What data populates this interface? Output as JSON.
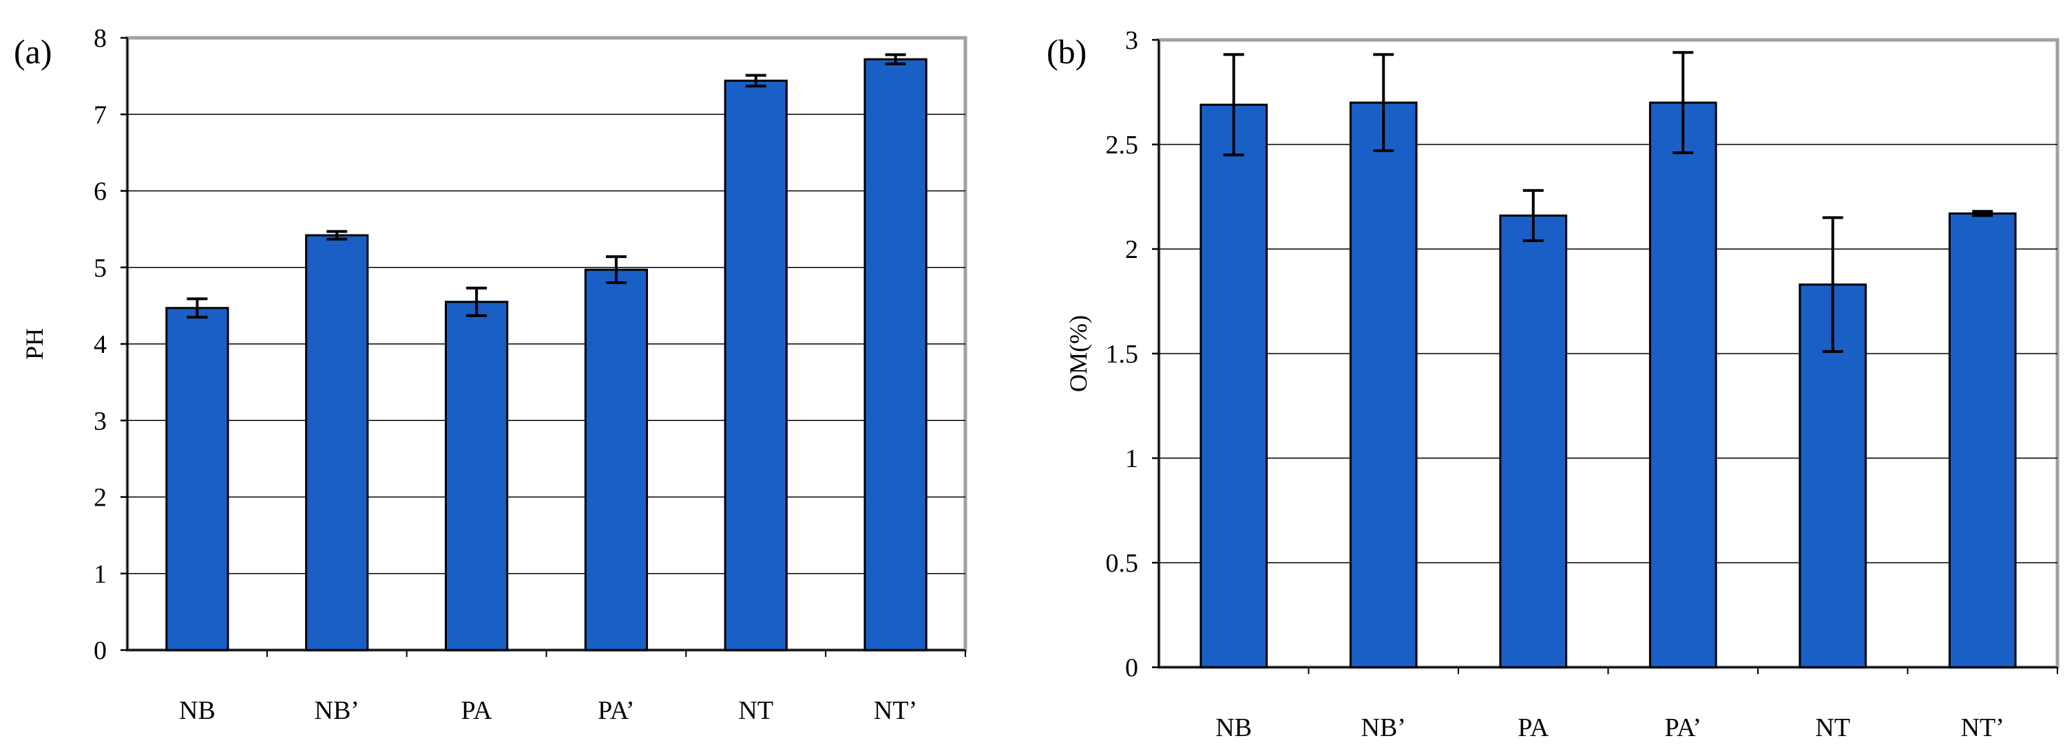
{
  "chart_data": [
    {
      "type": "bar",
      "panel_label": "(a)",
      "title": "",
      "xlabel": "",
      "ylabel": "PH",
      "ylim": [
        0,
        8
      ],
      "yticks": [
        0,
        1,
        2,
        3,
        4,
        5,
        6,
        7,
        8
      ],
      "ytick_labels": [
        "0",
        "1",
        "2",
        "3",
        "4",
        "5",
        "6",
        "7",
        "8"
      ],
      "grid": true,
      "categories": [
        "NB",
        "NB’",
        "PA",
        "PA’",
        "NT",
        "NT’"
      ],
      "values": [
        4.47,
        5.42,
        4.55,
        4.97,
        7.44,
        7.72
      ],
      "errors": [
        0.12,
        0.05,
        0.18,
        0.17,
        0.07,
        0.06
      ],
      "bar_color": "#1a5fc6"
    },
    {
      "type": "bar",
      "panel_label": "(b)",
      "title": "",
      "xlabel": "",
      "ylabel": "OM(%)",
      "ylim": [
        0,
        3
      ],
      "yticks": [
        0,
        0.5,
        1,
        1.5,
        2,
        2.5,
        3
      ],
      "ytick_labels": [
        "0",
        "0.5",
        "1",
        "1.5",
        "2",
        "2.5",
        "3"
      ],
      "grid": true,
      "categories": [
        "NB",
        "NB’",
        "PA",
        "PA’",
        "NT",
        "NT’"
      ],
      "values": [
        2.69,
        2.7,
        2.16,
        2.7,
        1.83,
        2.17
      ],
      "errors": [
        0.24,
        0.23,
        0.12,
        0.24,
        0.32,
        0.01
      ],
      "bar_color": "#1a5fc6"
    }
  ]
}
